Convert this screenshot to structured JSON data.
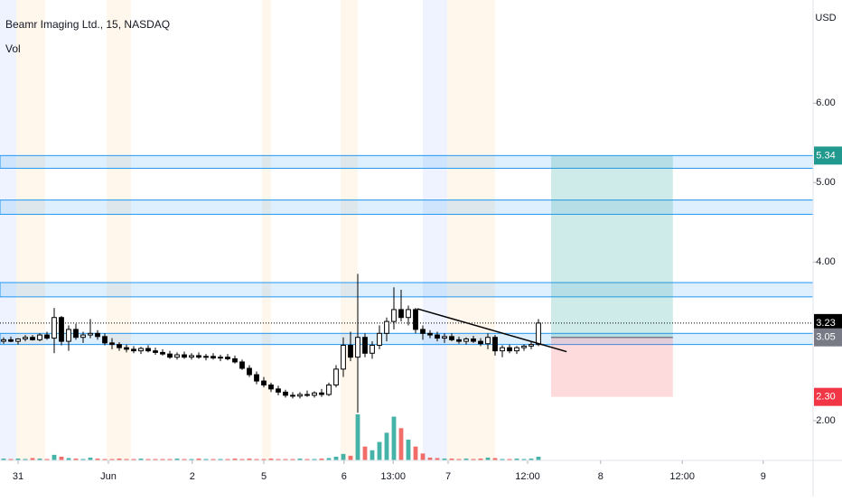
{
  "chart_data": {
    "type": "candlestick",
    "title": "Beamr Imaging Ltd., 15, NASDAQ",
    "volume_label": "Vol",
    "currency": "USD",
    "ylim": [
      1.5,
      7.3
    ],
    "xlim": [
      0,
      112.5
    ],
    "yticks": [
      {
        "value": 6,
        "label": "6.00"
      },
      {
        "value": 5,
        "label": "5.00"
      },
      {
        "value": 4,
        "label": "4.00"
      },
      {
        "value": 2,
        "label": "2.00"
      }
    ],
    "xticks": [
      {
        "value": 2.5,
        "label": "31"
      },
      {
        "value": 15,
        "label": "Jun"
      },
      {
        "value": 26.6,
        "label": "2"
      },
      {
        "value": 36.5,
        "label": "5"
      },
      {
        "value": 47.6,
        "label": "6"
      },
      {
        "value": 54.4,
        "label": "13:00"
      },
      {
        "value": 62,
        "label": "7"
      },
      {
        "value": 73,
        "label": "12:00"
      },
      {
        "value": 83.1,
        "label": "8"
      },
      {
        "value": 94.4,
        "label": "12:00"
      },
      {
        "value": 105.6,
        "label": "9"
      }
    ],
    "up_color": "#ffffff",
    "down_color": "#000000",
    "candles": [
      [
        3.0,
        3.05,
        2.97,
        3.02
      ],
      [
        3.02,
        3.06,
        2.99,
        3.0
      ],
      [
        3.0,
        3.04,
        2.96,
        3.03
      ],
      [
        3.03,
        3.08,
        3.0,
        3.05
      ],
      [
        3.05,
        3.08,
        3.01,
        3.02
      ],
      [
        3.02,
        3.1,
        3.0,
        3.08
      ],
      [
        3.08,
        3.12,
        3.02,
        3.04
      ],
      [
        3.04,
        3.42,
        2.85,
        3.3
      ],
      [
        3.3,
        3.32,
        2.95,
        3.0
      ],
      [
        3.0,
        3.2,
        2.88,
        3.15
      ],
      [
        3.15,
        3.22,
        3.02,
        3.05
      ],
      [
        3.05,
        3.12,
        2.98,
        3.08
      ],
      [
        3.08,
        3.28,
        3.04,
        3.1
      ],
      [
        3.1,
        3.14,
        3.02,
        3.06
      ],
      [
        3.06,
        3.1,
        2.95,
        2.98
      ],
      [
        2.98,
        3.04,
        2.9,
        2.96
      ],
      [
        2.96,
        2.99,
        2.88,
        2.92
      ],
      [
        2.92,
        2.96,
        2.86,
        2.9
      ],
      [
        2.9,
        2.94,
        2.85,
        2.88
      ],
      [
        2.88,
        2.93,
        2.84,
        2.91
      ],
      [
        2.91,
        2.95,
        2.86,
        2.88
      ],
      [
        2.88,
        2.92,
        2.83,
        2.86
      ],
      [
        2.86,
        2.9,
        2.82,
        2.84
      ],
      [
        2.84,
        2.88,
        2.78,
        2.8
      ],
      [
        2.8,
        2.86,
        2.77,
        2.83
      ],
      [
        2.83,
        2.87,
        2.78,
        2.8
      ],
      [
        2.8,
        2.85,
        2.77,
        2.82
      ],
      [
        2.82,
        2.86,
        2.78,
        2.8
      ],
      [
        2.8,
        2.84,
        2.76,
        2.81
      ],
      [
        2.81,
        2.85,
        2.77,
        2.79
      ],
      [
        2.79,
        2.83,
        2.75,
        2.8
      ],
      [
        2.8,
        2.84,
        2.76,
        2.78
      ],
      [
        2.78,
        2.82,
        2.72,
        2.74
      ],
      [
        2.74,
        2.77,
        2.64,
        2.66
      ],
      [
        2.66,
        2.7,
        2.55,
        2.58
      ],
      [
        2.58,
        2.62,
        2.46,
        2.5
      ],
      [
        2.5,
        2.55,
        2.42,
        2.45
      ],
      [
        2.45,
        2.48,
        2.36,
        2.4
      ],
      [
        2.4,
        2.44,
        2.32,
        2.36
      ],
      [
        2.36,
        2.39,
        2.29,
        2.32
      ],
      [
        2.32,
        2.36,
        2.28,
        2.31
      ],
      [
        2.31,
        2.36,
        2.28,
        2.33
      ],
      [
        2.33,
        2.38,
        2.3,
        2.32
      ],
      [
        2.32,
        2.37,
        2.29,
        2.35
      ],
      [
        2.35,
        2.4,
        2.3,
        2.33
      ],
      [
        2.33,
        2.48,
        2.31,
        2.45
      ],
      [
        2.45,
        2.7,
        2.42,
        2.65
      ],
      [
        2.65,
        3.05,
        2.55,
        2.95
      ],
      [
        2.95,
        3.12,
        2.75,
        2.8
      ],
      [
        2.8,
        3.85,
        2.1,
        3.05
      ],
      [
        3.05,
        3.1,
        2.8,
        2.85
      ],
      [
        2.85,
        3.0,
        2.78,
        2.95
      ],
      [
        2.95,
        3.2,
        2.9,
        3.1
      ],
      [
        3.1,
        3.3,
        3.0,
        3.25
      ],
      [
        3.25,
        3.68,
        3.15,
        3.4
      ],
      [
        3.4,
        3.65,
        3.25,
        3.3
      ],
      [
        3.3,
        3.45,
        3.2,
        3.4
      ],
      [
        3.4,
        3.42,
        3.1,
        3.15
      ],
      [
        3.15,
        3.2,
        3.02,
        3.1
      ],
      [
        3.1,
        3.14,
        3.04,
        3.08
      ],
      [
        3.08,
        3.12,
        3.0,
        3.04
      ],
      [
        3.04,
        3.1,
        2.98,
        3.06
      ],
      [
        3.06,
        3.1,
        3.0,
        3.02
      ],
      [
        3.02,
        3.06,
        2.97,
        3.0
      ],
      [
        3.0,
        3.05,
        2.96,
        3.03
      ],
      [
        3.03,
        3.07,
        2.98,
        3.0
      ],
      [
        3.0,
        3.04,
        2.94,
        2.97
      ],
      [
        2.97,
        3.1,
        2.9,
        3.05
      ],
      [
        3.05,
        3.08,
        2.82,
        2.88
      ],
      [
        2.88,
        2.95,
        2.8,
        2.92
      ],
      [
        2.92,
        2.96,
        2.85,
        2.88
      ],
      [
        2.88,
        2.94,
        2.84,
        2.92
      ],
      [
        2.92,
        2.96,
        2.88,
        2.94
      ],
      [
        2.94,
        3.0,
        2.9,
        2.96
      ],
      [
        2.96,
        3.28,
        2.94,
        3.23
      ]
    ],
    "volume": [
      4,
      3,
      4,
      3,
      5,
      4,
      3,
      12,
      8,
      5,
      4,
      3,
      6,
      4,
      3,
      3,
      4,
      3,
      3,
      4,
      3,
      3,
      3,
      3,
      4,
      3,
      3,
      4,
      3,
      3,
      3,
      3,
      4,
      3,
      4,
      3,
      3,
      4,
      3,
      3,
      3,
      4,
      3,
      3,
      4,
      5,
      8,
      14,
      10,
      100,
      30,
      22,
      40,
      60,
      95,
      70,
      45,
      30,
      15,
      6,
      5,
      4,
      4,
      3,
      4,
      3,
      4,
      6,
      5,
      3,
      3,
      4,
      3,
      4,
      8
    ],
    "vlim": [
      0,
      1000
    ],
    "volume_up_color": "#26a69a",
    "volume_down_color": "#ef5350",
    "zones": [
      [
        5.34,
        5.18
      ],
      [
        4.78,
        4.6
      ],
      [
        3.74,
        3.56
      ],
      [
        3.1,
        2.96
      ]
    ],
    "zone_color": "#2196f3",
    "trendline": {
      "x": [
        57.75,
        78.4
      ],
      "y": [
        3.41,
        2.87
      ]
    },
    "position": {
      "x": [
        76.25,
        93.1
      ],
      "entry": 3.05,
      "target": 5.34,
      "stop": 2.3
    },
    "last_price": 3.23,
    "price_labels": [
      {
        "value": 5.34,
        "label": "5.34",
        "color": "#22998e"
      },
      {
        "value": 3.23,
        "label": "3.23",
        "color": "#000000"
      },
      {
        "value": 3.05,
        "label": "3.05",
        "color": "#787b86"
      },
      {
        "value": 2.3,
        "label": "2.30",
        "color": "#f23645"
      }
    ]
  }
}
